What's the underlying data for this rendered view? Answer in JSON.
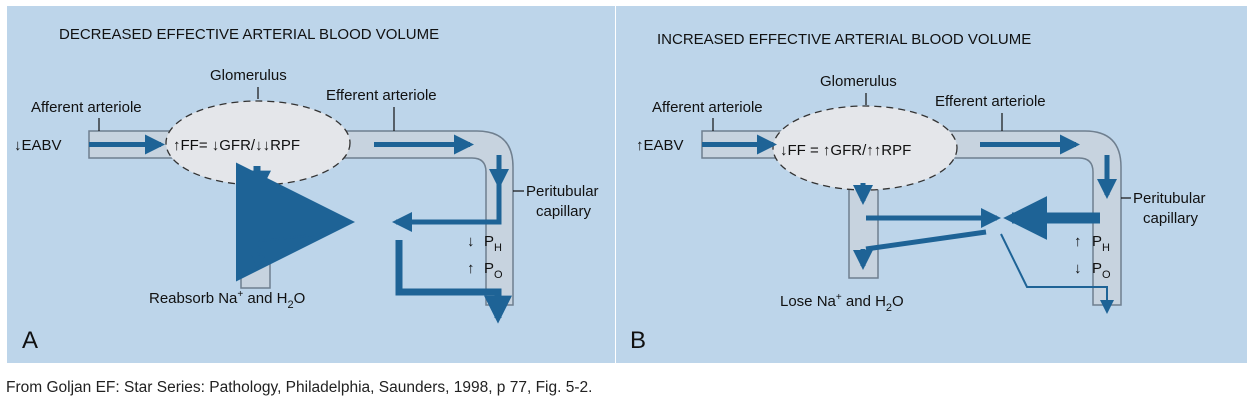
{
  "colors": {
    "panel_bg": "#bdd5ea",
    "vessel_fill": "#c7d3df",
    "vessel_stroke": "#6f7f8f",
    "arrow": "#1e6396",
    "text": "#111111"
  },
  "panel_a": {
    "letter": "A",
    "title": "DECREASED EFFECTIVE ARTERIAL BLOOD VOLUME",
    "label_glomerulus": "Glomerulus",
    "label_afferent": "Afferent arteriole",
    "label_efferent": "Efferent arteriole",
    "label_peritubular_1": "Peritubular",
    "label_peritubular_2": "capillary",
    "eabv": "↓EABV",
    "equation": "↑FF= ↓GFR/↓↓RPF",
    "ph_arrow": "↓",
    "ph_letter": "P",
    "ph_sub": "H",
    "po_arrow": "↑",
    "po_letter": "P",
    "po_sub": "O",
    "bottom_1": "Reabsorb  Na",
    "bottom_sup": "+",
    "bottom_2": " and  H",
    "bottom_sub": "2",
    "bottom_3": "O"
  },
  "panel_b": {
    "letter": "B",
    "title": "INCREASED EFFECTIVE ARTERIAL BLOOD VOLUME",
    "label_glomerulus": "Glomerulus",
    "label_afferent": "Afferent arteriole",
    "label_efferent": "Efferent arteriole",
    "label_peritubular_1": "Peritubular",
    "label_peritubular_2": "capillary",
    "eabv": "↑EABV",
    "equation": "↓FF = ↑GFR/↑↑RPF",
    "ph_arrow": "↑",
    "ph_letter": "P",
    "ph_sub": "H",
    "po_arrow": "↓",
    "po_letter": "P",
    "po_sub": "O",
    "bottom_1": "Lose  Na",
    "bottom_sup": "+",
    "bottom_2": " and  H",
    "bottom_sub": "2",
    "bottom_3": "O"
  },
  "citation": "From Goljan EF: Star Series: Pathology, Philadelphia, Saunders, 1998, p 77, Fig. 5-2."
}
